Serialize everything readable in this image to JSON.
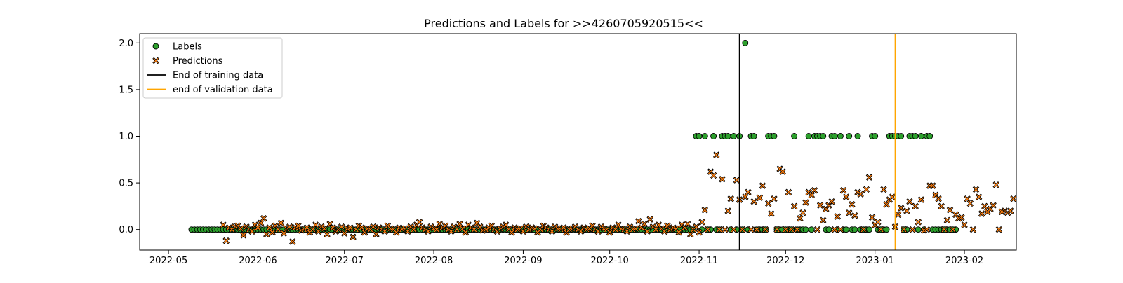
{
  "chart_data": {
    "type": "scatter",
    "title": "Predictions and Labels for >>4260705920515<<",
    "xlabel": "",
    "ylabel": "",
    "x_axis": {
      "kind": "date",
      "xlim": [
        "2022-04-21",
        "2023-02-19"
      ],
      "ticks": [
        "2022-05-01",
        "2022-06-01",
        "2022-07-01",
        "2022-08-01",
        "2022-09-01",
        "2022-10-01",
        "2022-11-01",
        "2022-12-01",
        "2023-01-01",
        "2023-02-01"
      ],
      "tick_labels": [
        "2022-05",
        "2022-06",
        "2022-07",
        "2022-08",
        "2022-09",
        "2022-10",
        "2022-11",
        "2022-12",
        "2023-01",
        "2023-02"
      ]
    },
    "y_axis": {
      "ylim": [
        -0.22,
        2.1
      ],
      "ticks": [
        0.0,
        0.5,
        1.0,
        1.5,
        2.0
      ],
      "tick_labels": [
        "0.0",
        "0.5",
        "1.0",
        "1.5",
        "2.0"
      ]
    },
    "grid": false,
    "legend": {
      "position": "upper-left",
      "entries": [
        {
          "label": "Labels",
          "marker": "circle",
          "color": "#2ca02c"
        },
        {
          "label": "Predictions",
          "marker": "x",
          "color": "#ff7f0e"
        },
        {
          "label": "End of training data",
          "marker": "line",
          "color": "#000000"
        },
        {
          "label": "end of validation data",
          "marker": "line",
          "color": "#ffa500"
        }
      ]
    },
    "vlines": [
      {
        "name": "End of training data",
        "x": "2022-11-15",
        "color": "#000000"
      },
      {
        "name": "end of validation data",
        "x": "2023-01-08",
        "color": "#ffa500"
      }
    ],
    "series": [
      {
        "name": "Labels",
        "marker": "circle",
        "color": "#2ca02c",
        "edgecolor": "#000000",
        "start_date": "2022-05-09",
        "values": [
          0,
          0,
          0,
          0,
          0,
          0,
          0,
          0,
          0,
          0,
          0,
          0,
          0,
          0,
          0,
          0,
          0,
          0,
          0,
          0,
          0,
          0,
          0,
          0,
          0,
          0,
          0,
          0,
          0,
          0,
          0,
          0,
          0,
          0,
          0,
          0,
          0,
          0,
          0,
          0,
          0,
          0,
          0,
          0,
          0,
          0,
          0,
          0,
          0,
          0,
          0,
          0,
          0,
          0,
          0,
          0,
          0,
          0,
          0,
          0,
          0,
          0,
          0,
          0,
          0,
          0,
          0,
          0,
          0,
          0,
          0,
          0,
          0,
          0,
          0,
          0,
          0,
          0,
          0,
          0,
          0,
          0,
          0,
          0,
          0,
          0,
          0,
          0,
          0,
          0,
          0,
          0,
          0,
          0,
          0,
          0,
          0,
          0,
          0,
          0,
          0,
          0,
          0,
          0,
          0,
          0,
          0,
          0,
          0,
          0,
          0,
          0,
          0,
          0,
          0,
          0,
          0,
          0,
          0,
          0,
          0,
          0,
          0,
          0,
          0,
          0,
          0,
          0,
          0,
          0,
          0,
          0,
          0,
          0,
          0,
          0,
          0,
          0,
          0,
          0,
          0,
          0,
          0,
          0,
          0,
          0,
          0,
          0,
          0,
          0,
          0,
          0,
          0,
          0,
          0,
          0,
          0,
          0,
          0,
          0,
          0,
          0,
          0,
          0,
          0,
          0,
          0,
          0,
          0,
          0,
          0,
          0,
          0,
          0,
          0,
          1,
          1,
          0,
          1,
          0,
          0,
          1,
          0,
          0,
          1,
          1,
          1,
          0,
          1,
          0,
          1,
          0,
          2,
          0,
          1,
          1,
          0,
          0,
          0,
          0,
          1,
          1,
          1,
          0,
          0,
          0,
          0,
          0,
          0,
          1,
          0,
          0,
          0,
          0,
          1,
          0,
          1,
          1,
          1,
          1,
          0,
          0,
          1,
          1,
          0,
          1,
          0,
          0,
          1,
          0,
          0,
          1,
          0,
          0,
          0,
          0,
          1,
          1,
          0,
          0,
          0,
          0,
          1,
          1,
          1,
          1,
          1,
          0,
          0,
          1,
          1,
          1,
          0,
          1,
          0,
          1,
          1,
          0,
          0,
          0,
          0,
          0,
          0,
          0,
          0,
          0
        ]
      },
      {
        "name": "Predictions",
        "marker": "x",
        "color": "#ff7f0e",
        "edgecolor": "#000000",
        "start_date": "2022-05-20",
        "values": [
          0.05,
          -0.12,
          0.02,
          0.0,
          0.03,
          0.04,
          0.01,
          -0.06,
          0.03,
          0.0,
          -0.02,
          0.05,
          0.02,
          0.07,
          0.12,
          -0.05,
          0.02,
          -0.03,
          0.04,
          0.0,
          0.07,
          -0.04,
          0.01,
          0.03,
          -0.13,
          0.02,
          0.04,
          -0.01,
          0.0,
          0.02,
          -0.03,
          0.0,
          0.05,
          -0.02,
          0.03,
          0.01,
          -0.05,
          0.06,
          0.02,
          -0.02,
          0.0,
          0.03,
          -0.04,
          0.01,
          0.02,
          -0.08,
          0.0,
          0.04,
          0.02,
          -0.03,
          0.01,
          0.0,
          0.03,
          -0.05,
          0.02,
          0.0,
          -0.02,
          0.04,
          0.01,
          0.0,
          -0.03,
          0.02,
          0.0,
          0.01,
          -0.02,
          0.03,
          0.0,
          0.05,
          0.08,
          0.02,
          0.0,
          -0.02,
          0.03,
          0.01,
          0.0,
          0.06,
          0.02,
          0.04,
          0.0,
          -0.02,
          0.03,
          0.0,
          0.06,
          0.01,
          -0.03,
          0.05,
          0.02,
          0.0,
          0.07,
          0.03,
          -0.01,
          0.0,
          0.02,
          0.04,
          0.0,
          -0.02,
          0.01,
          0.03,
          0.05,
          0.0,
          -0.03,
          0.02,
          0.0,
          0.01,
          -0.02,
          0.03,
          0.0,
          0.02,
          0.01,
          -0.03,
          0.0,
          0.04,
          0.02,
          0.0,
          -0.02,
          0.03,
          0.01,
          0.0,
          0.02,
          -0.03,
          0.0,
          0.01,
          0.03,
          0.0,
          -0.02,
          0.02,
          0.0,
          0.01,
          0.04,
          0.0,
          -0.02,
          0.03,
          0.01,
          0.0,
          -0.03,
          0.02,
          0.0,
          0.05,
          0.01,
          0.0,
          -0.02,
          0.03,
          0.0,
          0.01,
          0.09,
          0.02,
          0.06,
          -0.02,
          0.11,
          0.03,
          0.0,
          0.05,
          0.01,
          -0.02,
          0.04,
          0.0,
          0.02,
          0.01,
          -0.03,
          0.05,
          0.02,
          0.06,
          -0.05,
          0.0,
          0.03,
          -0.03,
          0.08,
          0.21,
          0.0,
          0.62,
          0.58,
          0.8,
          0.0,
          0.54,
          0.0,
          0.2,
          0.33,
          0.0,
          0.53,
          0.32,
          0.0,
          0.35,
          0.4,
          0.0,
          0.3,
          0.0,
          0.34,
          0.47,
          0.0,
          0.28,
          0.17,
          0.33,
          0.0,
          0.65,
          0.62,
          0.0,
          0.4,
          0.0,
          0.25,
          0.0,
          0.12,
          0.18,
          0.29,
          0.4,
          0.37,
          0.42,
          0.0,
          0.26,
          0.1,
          0.22,
          0.26,
          0.3,
          0.0,
          0.14,
          0.0,
          0.42,
          0.35,
          0.18,
          0.27,
          0.15,
          0.4,
          0.38,
          0.0,
          0.43,
          0.56,
          0.13,
          0.05,
          0.08,
          0.0,
          0.43,
          0.27,
          0.32,
          0.35,
          0.03,
          0.16,
          0.23,
          0.0,
          0.2,
          0.3,
          0.0,
          0.25,
          0.08,
          0.32,
          -0.01,
          0.0,
          0.47,
          0.47,
          0.37,
          0.33,
          0.25,
          0.0,
          0.1,
          0.21,
          0.0,
          0.16,
          0.12,
          0.13,
          0.05,
          0.33,
          0.28,
          0.0,
          0.43,
          0.35,
          0.17,
          0.25,
          0.19,
          0.22,
          0.26,
          0.48,
          0.0,
          0.19,
          0.2,
          0.18,
          0.2,
          0.33
        ]
      }
    ]
  }
}
